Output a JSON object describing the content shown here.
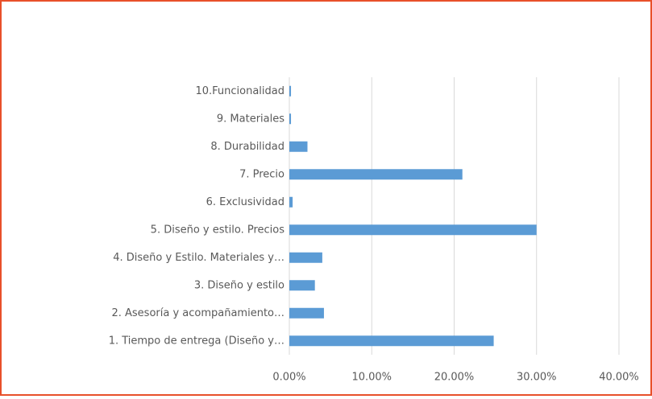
{
  "chart_data": {
    "type": "bar",
    "orientation": "horizontal",
    "categories": [
      "1. Tiempo de entrega (Diseño y…",
      "2. Asesoría y acompañamiento…",
      "3. Diseño y estilo",
      "4. Diseño y Estilo. Materiales y…",
      "5. Diseño y estilo. Precios",
      "6. Exclusividad",
      "7. Precio",
      "8. Durabilidad",
      "9. Materiales",
      "10.Funcionalidad"
    ],
    "values": [
      24.8,
      4.2,
      3.1,
      4.0,
      30.0,
      0.4,
      21.0,
      2.2,
      0.2,
      0.2
    ],
    "color": "#5b9bd5",
    "xlim": [
      0,
      40
    ],
    "xticks": [
      {
        "value": 0,
        "label": "0.00%"
      },
      {
        "value": 10,
        "label": "10.00%"
      },
      {
        "value": 20,
        "label": "20.00%"
      },
      {
        "value": 30,
        "label": "30.00%"
      },
      {
        "value": 40,
        "label": "40.00%"
      }
    ],
    "grid": true
  }
}
